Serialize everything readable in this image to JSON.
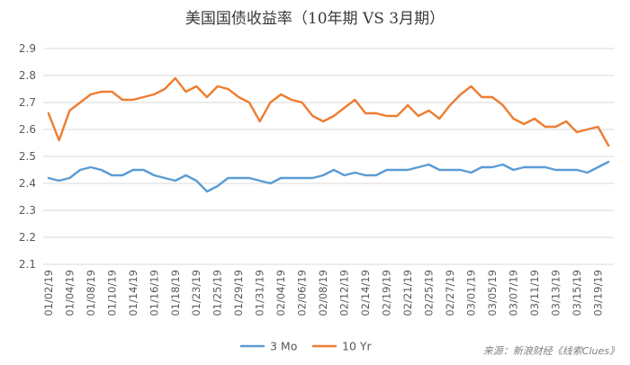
{
  "chart_data": {
    "type": "line",
    "title": "美国国债收益率（10年期 VS 3月期）",
    "ylim": [
      2.1,
      2.9
    ],
    "yticks": [
      "2.9",
      "2.8",
      "2.7",
      "2.6",
      "2.5",
      "2.4",
      "2.3",
      "2.2",
      "2.1"
    ],
    "grid": true,
    "legend_position": "bottom",
    "xtick_labels": [
      "01/02/19",
      "01/04/19",
      "01/08/19",
      "01/10/19",
      "01/14/19",
      "01/16/19",
      "01/18/19",
      "01/23/19",
      "01/25/19",
      "01/29/19",
      "01/31/19",
      "02/04/19",
      "02/06/19",
      "02/08/19",
      "02/12/19",
      "02/14/19",
      "02/19/19",
      "02/21/19",
      "02/25/19",
      "02/27/19",
      "03/01/19",
      "03/05/19",
      "03/07/19",
      "03/11/19",
      "03/13/19",
      "03/15/19",
      "03/19/19"
    ],
    "x": [
      "01/02/19",
      "01/03/19",
      "01/04/19",
      "01/07/19",
      "01/08/19",
      "01/09/19",
      "01/10/19",
      "01/11/19",
      "01/14/19",
      "01/15/19",
      "01/16/19",
      "01/17/19",
      "01/18/19",
      "01/22/19",
      "01/23/19",
      "01/24/19",
      "01/25/19",
      "01/28/19",
      "01/29/19",
      "01/30/19",
      "01/31/19",
      "02/01/19",
      "02/04/19",
      "02/05/19",
      "02/06/19",
      "02/07/19",
      "02/08/19",
      "02/11/19",
      "02/12/19",
      "02/13/19",
      "02/14/19",
      "02/15/19",
      "02/19/19",
      "02/20/19",
      "02/21/19",
      "02/22/19",
      "02/25/19",
      "02/26/19",
      "02/27/19",
      "02/28/19",
      "03/01/19",
      "03/04/19",
      "03/05/19",
      "03/06/19",
      "03/07/19",
      "03/08/19",
      "03/11/19",
      "03/12/19",
      "03/13/19",
      "03/14/19",
      "03/15/19",
      "03/18/19",
      "03/19/19",
      "03/20/19"
    ],
    "series": [
      {
        "name": "3 Mo",
        "color": "#5B9BD5",
        "values": [
          2.42,
          2.41,
          2.42,
          2.45,
          2.46,
          2.45,
          2.43,
          2.43,
          2.45,
          2.45,
          2.43,
          2.42,
          2.41,
          2.43,
          2.41,
          2.37,
          2.39,
          2.42,
          2.42,
          2.42,
          2.41,
          2.4,
          2.42,
          2.42,
          2.42,
          2.42,
          2.43,
          2.45,
          2.43,
          2.44,
          2.43,
          2.43,
          2.45,
          2.45,
          2.45,
          2.46,
          2.47,
          2.45,
          2.45,
          2.45,
          2.44,
          2.46,
          2.46,
          2.47,
          2.45,
          2.46,
          2.46,
          2.46,
          2.45,
          2.45,
          2.45,
          2.44,
          2.46,
          2.48
        ]
      },
      {
        "name": "10 Yr",
        "color": "#ED7D31",
        "values": [
          2.66,
          2.56,
          2.67,
          2.7,
          2.73,
          2.74,
          2.74,
          2.71,
          2.71,
          2.72,
          2.73,
          2.75,
          2.79,
          2.74,
          2.76,
          2.72,
          2.76,
          2.75,
          2.72,
          2.7,
          2.63,
          2.7,
          2.73,
          2.71,
          2.7,
          2.65,
          2.63,
          2.65,
          2.68,
          2.71,
          2.66,
          2.66,
          2.65,
          2.65,
          2.69,
          2.65,
          2.67,
          2.64,
          2.69,
          2.73,
          2.76,
          2.72,
          2.72,
          2.69,
          2.64,
          2.62,
          2.64,
          2.61,
          2.61,
          2.63,
          2.59,
          2.6,
          2.61,
          2.54
        ]
      }
    ]
  },
  "source_text": "来源：新浪财经《线索Clues》"
}
